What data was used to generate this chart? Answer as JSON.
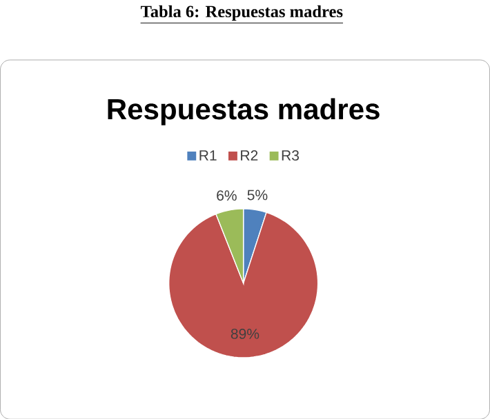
{
  "chart_data": {
    "type": "pie",
    "title": "Respuestas madres",
    "annotations": [
      "Tabla 6: Respuestas madres"
    ],
    "categories": [
      "R1",
      "R2",
      "R3"
    ],
    "values": [
      5,
      89,
      6
    ],
    "value_labels": [
      "5%",
      "89%",
      "6%"
    ],
    "colors": [
      "#4f81bd",
      "#c0504d",
      "#9bbb59"
    ],
    "legend": "top"
  }
}
